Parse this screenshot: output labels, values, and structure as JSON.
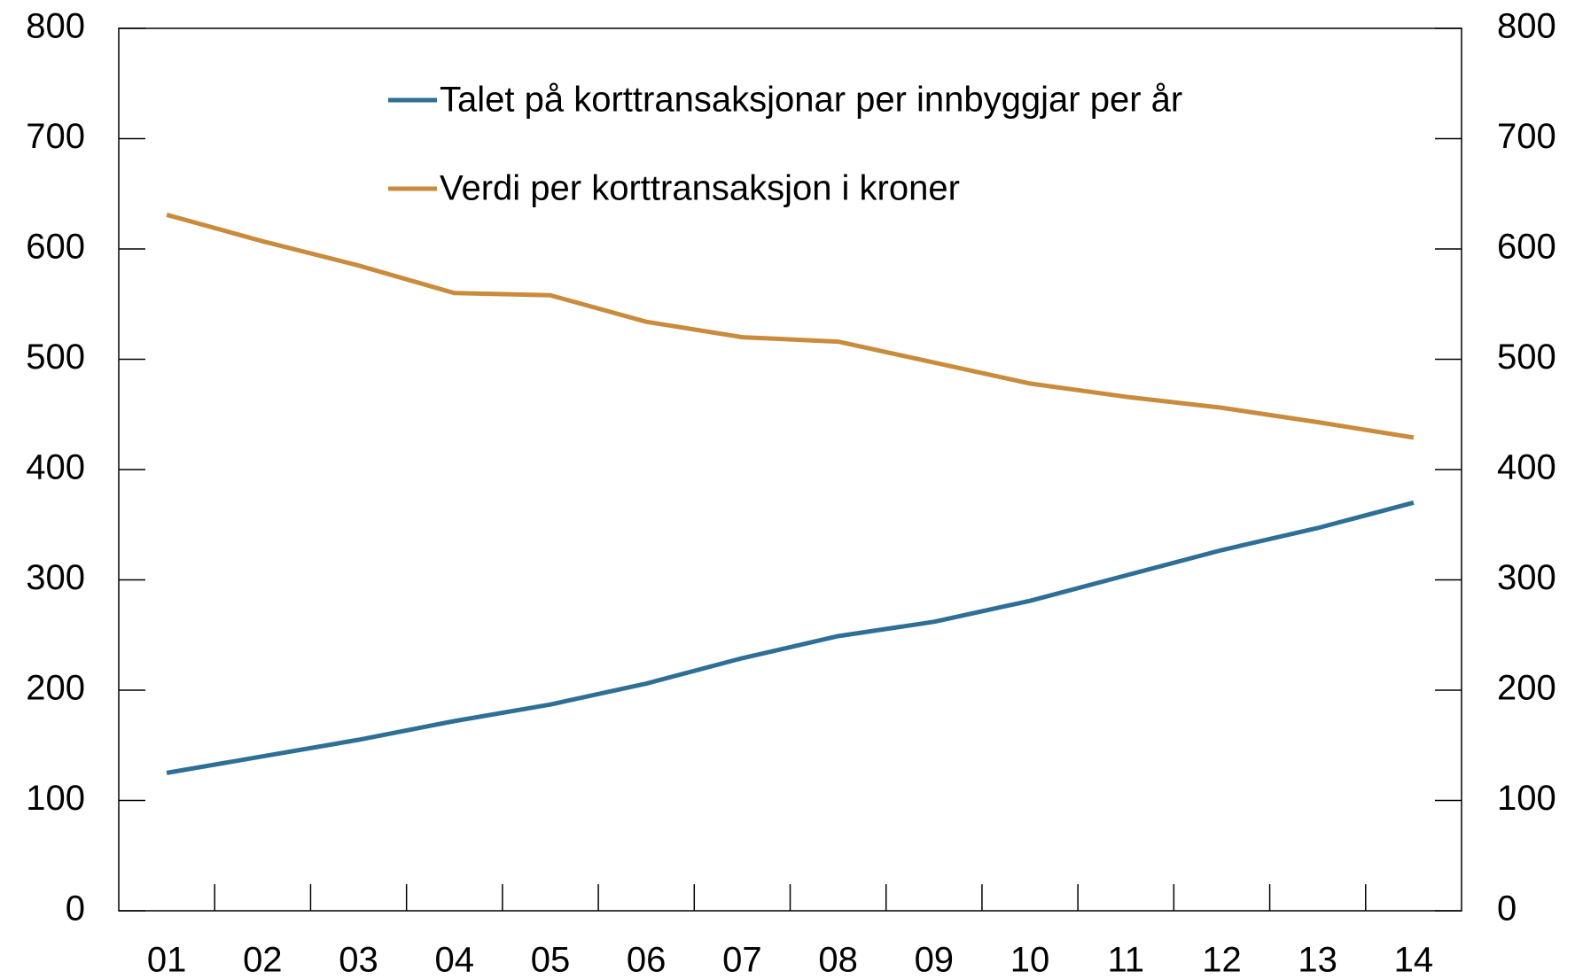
{
  "chart_data": {
    "type": "line",
    "categories": [
      "01",
      "02",
      "03",
      "04",
      "05",
      "06",
      "07",
      "08",
      "09",
      "10",
      "11",
      "12",
      "13",
      "14"
    ],
    "series": [
      {
        "name": "Talet på korttransaksjonar per innbyggjar per år",
        "color": "#2e6f96",
        "values": [
          125,
          140,
          155,
          172,
          187,
          206,
          229,
          249,
          262,
          281,
          304,
          327,
          347,
          370
        ]
      },
      {
        "name": "Verdi per korttransaksjon i kroner",
        "color": "#c98b3c",
        "values": [
          631,
          607,
          585,
          560,
          558,
          534,
          520,
          516,
          497,
          478,
          466,
          456,
          443,
          429
        ]
      }
    ],
    "ylim": [
      0,
      800
    ],
    "yticks": [
      0,
      100,
      200,
      300,
      400,
      500,
      600,
      700,
      800
    ],
    "y2lim": [
      0,
      800
    ],
    "y2ticks": [
      0,
      100,
      200,
      300,
      400,
      500,
      600,
      700,
      800
    ],
    "grid": false,
    "legend": "top"
  }
}
